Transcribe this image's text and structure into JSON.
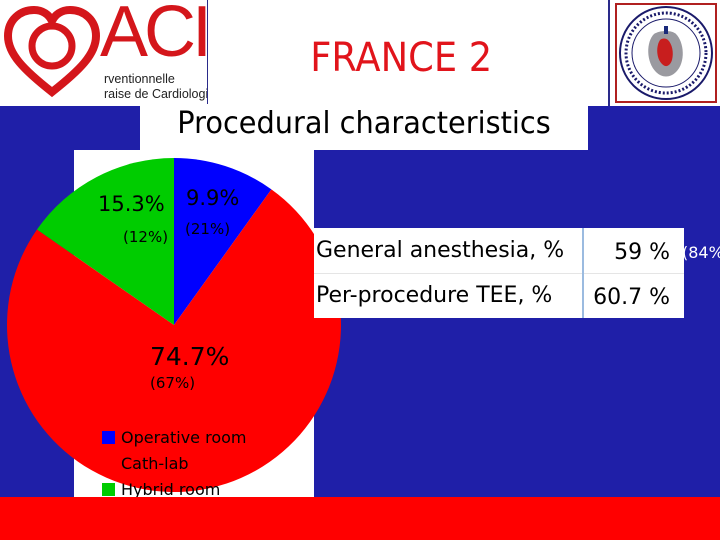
{
  "header": {
    "brand": "ACI",
    "brand_sub_line1": "rventionnelle",
    "brand_sub_line2": "raise de Cardiologie",
    "title": "FRANCE 2",
    "subtitle": "Procedural characteristics"
  },
  "colors": {
    "operative_room": "#0000ff",
    "cath_lab": "#ff0000",
    "hybrid_room": "#00cc00",
    "background": "#1f1fa8",
    "footer": "#ff0000",
    "title": "#e1141b"
  },
  "chart_data": {
    "type": "pie",
    "slices": [
      {
        "name": "Operative room",
        "value": 9.9,
        "value_label": "9.9%",
        "compare_label": "(21%)",
        "color": "#0000ff"
      },
      {
        "name": "Cath-lab",
        "value": 74.7,
        "value_label": "74.7%",
        "compare_label": "(67%)",
        "color": "#ff0000"
      },
      {
        "name": "Hybrid room",
        "value": 15.3,
        "value_label": "15.3%",
        "compare_label": "(12%)",
        "color": "#00cc00"
      }
    ],
    "legend": [
      "Operative room",
      "Cath-lab",
      "Hybrid room"
    ],
    "legend_position": "bottom"
  },
  "table": {
    "rows": [
      {
        "label": "General anesthesia, %",
        "value": "59 %"
      },
      {
        "label": "Per-procedure TEE, %",
        "value": "60.7 %"
      }
    ],
    "overflow_note": "(84%"
  }
}
